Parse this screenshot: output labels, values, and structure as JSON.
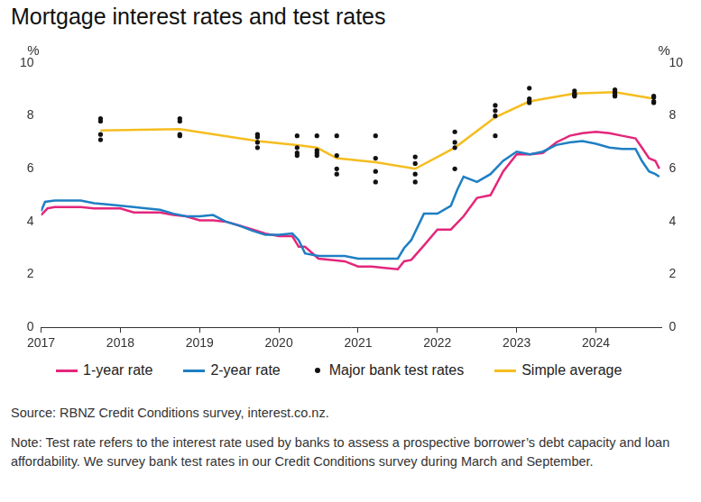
{
  "chart_data": {
    "type": "line",
    "title": "Mortgage interest rates and test rates",
    "ylabel": "%",
    "y2label": "%",
    "source": "Source: RBNZ Credit Conditions survey, interest.co.nz.",
    "note": "Note: Test rate refers to the interest rate used by banks to assess a prospective borrower’s debt capacity and loan affordability. We survey bank test rates in our Credit Conditions survey during March and September.",
    "xlim": [
      2017,
      2024.83
    ],
    "xticks": [
      2017,
      2018,
      2019,
      2020,
      2021,
      2022,
      2023,
      2024
    ],
    "ylim": [
      0,
      10
    ],
    "yticks": [
      0,
      2,
      4,
      6,
      8,
      10
    ],
    "y2lim": [
      0,
      10
    ],
    "y2ticks": [
      0,
      2,
      4,
      6,
      8,
      10
    ],
    "grid": false,
    "legend": "bottom",
    "series": [
      {
        "name": "1-year rate",
        "type": "line",
        "color": "#e4267b",
        "x": [
          2017.0,
          2017.08,
          2017.17,
          2017.33,
          2017.5,
          2017.67,
          2017.83,
          2018.0,
          2018.17,
          2018.33,
          2018.5,
          2018.67,
          2018.83,
          2019.0,
          2019.17,
          2019.33,
          2019.5,
          2019.67,
          2019.83,
          2020.0,
          2020.17,
          2020.25,
          2020.33,
          2020.5,
          2020.67,
          2020.83,
          2021.0,
          2021.17,
          2021.33,
          2021.5,
          2021.58,
          2021.67,
          2021.83,
          2022.0,
          2022.17,
          2022.33,
          2022.5,
          2022.67,
          2022.83,
          2023.0,
          2023.17,
          2023.33,
          2023.5,
          2023.67,
          2023.83,
          2024.0,
          2024.17,
          2024.33,
          2024.5,
          2024.58,
          2024.67,
          2024.75,
          2024.8
        ],
        "values": [
          4.25,
          4.5,
          4.55,
          4.55,
          4.55,
          4.5,
          4.5,
          4.5,
          4.35,
          4.35,
          4.35,
          4.25,
          4.2,
          4.05,
          4.05,
          4.0,
          3.85,
          3.7,
          3.55,
          3.45,
          3.45,
          3.05,
          3.05,
          2.6,
          2.55,
          2.5,
          2.3,
          2.3,
          2.25,
          2.2,
          2.5,
          2.55,
          3.1,
          3.7,
          3.7,
          4.2,
          4.9,
          5.0,
          5.9,
          6.55,
          6.55,
          6.6,
          7.0,
          7.25,
          7.35,
          7.4,
          7.35,
          7.25,
          7.15,
          6.8,
          6.4,
          6.3,
          6.0
        ]
      },
      {
        "name": "2-year rate",
        "type": "line",
        "color": "#1f7fc4",
        "x": [
          2017.0,
          2017.05,
          2017.17,
          2017.33,
          2017.5,
          2017.67,
          2017.83,
          2018.0,
          2018.17,
          2018.33,
          2018.5,
          2018.67,
          2018.83,
          2019.0,
          2019.17,
          2019.33,
          2019.5,
          2019.67,
          2019.83,
          2020.0,
          2020.17,
          2020.25,
          2020.33,
          2020.5,
          2020.67,
          2020.83,
          2021.0,
          2021.17,
          2021.33,
          2021.5,
          2021.58,
          2021.67,
          2021.83,
          2022.0,
          2022.17,
          2022.25,
          2022.33,
          2022.5,
          2022.67,
          2022.83,
          2023.0,
          2023.17,
          2023.33,
          2023.5,
          2023.67,
          2023.83,
          2024.0,
          2024.17,
          2024.33,
          2024.5,
          2024.58,
          2024.67,
          2024.75,
          2024.8
        ],
        "values": [
          4.4,
          4.75,
          4.8,
          4.8,
          4.8,
          4.7,
          4.65,
          4.6,
          4.55,
          4.5,
          4.45,
          4.3,
          4.2,
          4.2,
          4.25,
          4.0,
          3.85,
          3.65,
          3.5,
          3.5,
          3.55,
          3.3,
          2.8,
          2.7,
          2.7,
          2.7,
          2.6,
          2.6,
          2.6,
          2.6,
          3.0,
          3.3,
          4.3,
          4.3,
          4.6,
          5.2,
          5.7,
          5.5,
          5.8,
          6.3,
          6.65,
          6.55,
          6.65,
          6.9,
          7.0,
          7.05,
          6.95,
          6.8,
          6.75,
          6.75,
          6.3,
          5.9,
          5.8,
          5.7
        ]
      },
      {
        "name": "Major bank test rates",
        "type": "scatter",
        "color": "#111111",
        "x": [
          2017.75,
          2017.75,
          2017.75,
          2017.75,
          2018.75,
          2018.75,
          2018.75,
          2018.75,
          2019.73,
          2019.73,
          2019.73,
          2019.73,
          2020.23,
          2020.23,
          2020.23,
          2020.23,
          2020.48,
          2020.48,
          2020.48,
          2020.48,
          2020.73,
          2020.73,
          2020.73,
          2020.73,
          2021.22,
          2021.22,
          2021.22,
          2021.22,
          2021.72,
          2021.72,
          2021.72,
          2021.72,
          2022.22,
          2022.22,
          2022.22,
          2022.22,
          2022.73,
          2022.73,
          2022.73,
          2022.73,
          2023.16,
          2023.16,
          2023.16,
          2023.16,
          2023.73,
          2023.73,
          2023.73,
          2023.73,
          2024.24,
          2024.24,
          2024.24,
          2024.24,
          2024.73,
          2024.73,
          2024.73,
          2024.73
        ],
        "values": [
          7.9,
          7.8,
          7.3,
          7.1,
          7.9,
          7.8,
          7.3,
          7.25,
          7.3,
          7.2,
          7.0,
          6.8,
          7.25,
          6.8,
          6.6,
          6.5,
          7.25,
          6.7,
          6.6,
          6.5,
          7.25,
          6.5,
          6.0,
          5.8,
          7.25,
          6.4,
          5.9,
          5.5,
          6.45,
          6.2,
          5.8,
          5.5,
          7.4,
          7.0,
          6.8,
          6.0,
          8.4,
          8.2,
          8.0,
          7.25,
          9.05,
          8.65,
          8.55,
          8.5,
          8.95,
          8.85,
          8.8,
          8.75,
          8.99,
          8.9,
          8.8,
          8.75,
          8.75,
          8.7,
          8.55,
          8.5
        ]
      },
      {
        "name": "Simple average",
        "type": "line",
        "color": "#f5bd1f",
        "x": [
          2017.75,
          2018.75,
          2019.73,
          2020.23,
          2020.48,
          2020.73,
          2021.22,
          2021.72,
          2022.22,
          2022.73,
          2023.16,
          2023.73,
          2024.24,
          2024.73
        ],
        "values": [
          7.45,
          7.5,
          7.05,
          6.9,
          6.8,
          6.4,
          6.25,
          6.0,
          6.8,
          7.95,
          8.55,
          8.85,
          8.9,
          8.65
        ]
      }
    ]
  }
}
